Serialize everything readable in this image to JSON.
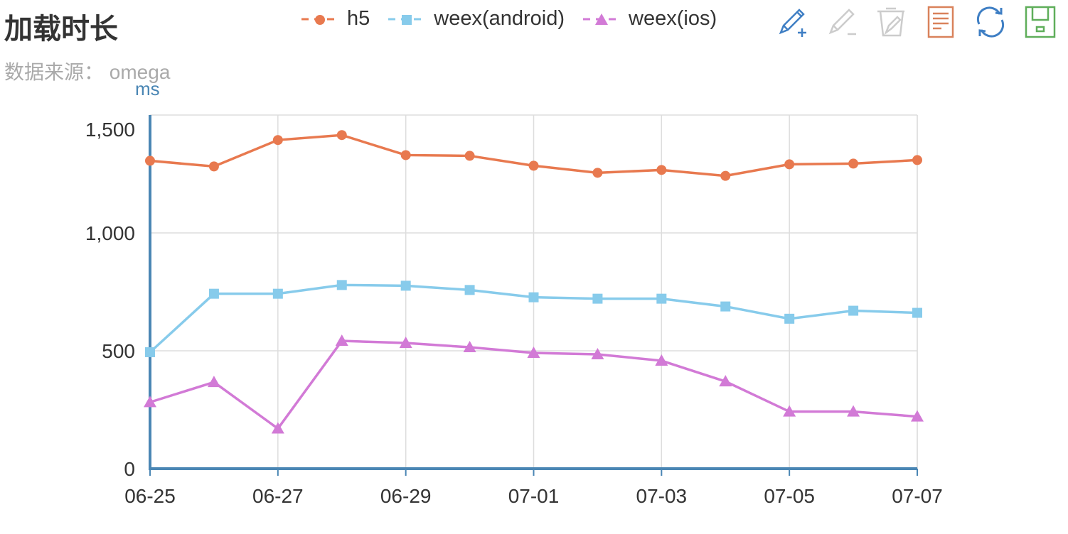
{
  "header": {
    "title": "加载时长",
    "subtitle": "数据来源： omega"
  },
  "toolbar": [
    {
      "name": "zoom-add-icon",
      "color": "#3f7fc4"
    },
    {
      "name": "zoom-remove-icon",
      "color": "#cccccc"
    },
    {
      "name": "restore-clear-icon",
      "color": "#cccccc"
    },
    {
      "name": "data-view-icon",
      "color": "#d9825b"
    },
    {
      "name": "refresh-icon",
      "color": "#3f7fc4"
    },
    {
      "name": "save-image-icon",
      "color": "#5fae5a"
    }
  ],
  "chart_data": {
    "type": "line",
    "title": "加载时长",
    "subtitle": "数据来源： omega",
    "ylabel": "ms",
    "xlabel": "",
    "ylim": [
      0,
      1500
    ],
    "yticks": [
      0,
      500,
      1000,
      1500
    ],
    "ytick_labels": [
      "0",
      "500",
      "1,000",
      "1,500"
    ],
    "x": [
      "06-25",
      "06-26",
      "06-27",
      "06-28",
      "06-29",
      "06-30",
      "07-01",
      "07-02",
      "07-03",
      "07-04",
      "07-05",
      "07-06",
      "07-07"
    ],
    "xtick_labels": [
      "06-25",
      "06-27",
      "06-29",
      "07-01",
      "07-03",
      "07-05",
      "07-07"
    ],
    "grid": true,
    "legend_position": "top-right",
    "series": [
      {
        "name": "h5",
        "color": "#e8794f",
        "marker": "circle",
        "values": [
          1306,
          1282,
          1394,
          1415,
          1330,
          1327,
          1285,
          1255,
          1267,
          1242,
          1291,
          1294,
          1309
        ]
      },
      {
        "name": "weex(android)",
        "color": "#87cbeb",
        "marker": "square",
        "values": [
          494,
          742,
          742,
          779,
          776,
          758,
          727,
          721,
          721,
          688,
          636,
          670,
          661
        ]
      },
      {
        "name": "weex(ios)",
        "color": "#d27ad6",
        "marker": "triangle",
        "values": [
          282,
          367,
          170,
          542,
          533,
          515,
          491,
          485,
          458,
          370,
          242,
          242,
          221
        ]
      }
    ]
  }
}
